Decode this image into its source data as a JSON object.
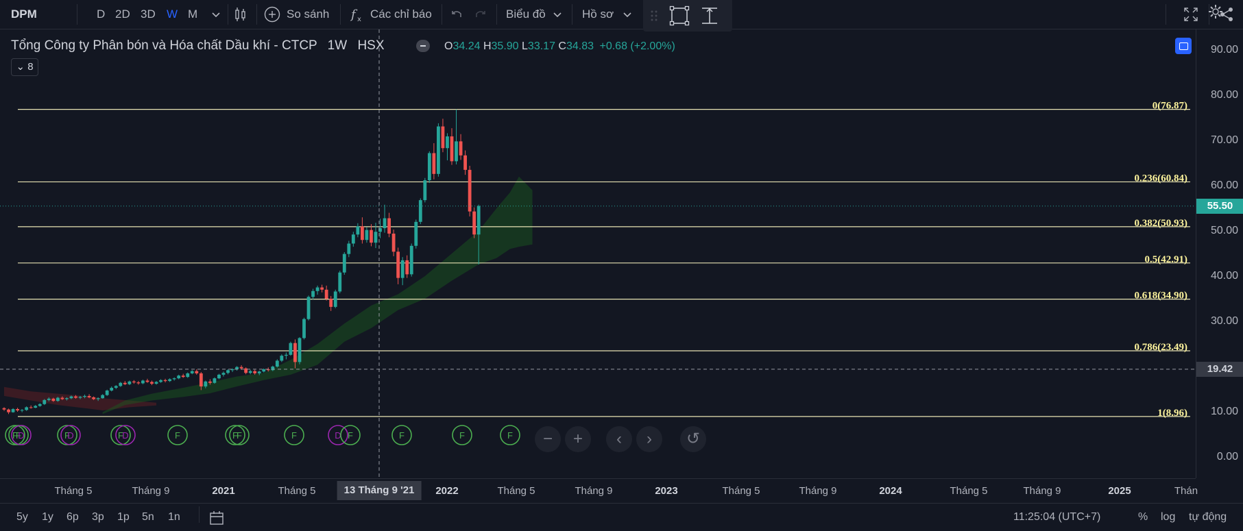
{
  "toolbar": {
    "symbol": "DPM",
    "intervals": [
      "D",
      "2D",
      "3D",
      "W",
      "M"
    ],
    "active_interval": "W",
    "compare_label": "So sánh",
    "indicators_label": "Các chỉ báo",
    "chart_label": "Biểu đồ",
    "profile_label": "Hồ sơ"
  },
  "legend": {
    "company": "Tổng Công ty Phân bón và Hóa chất Dầu khí - CTCP",
    "interval": "1W",
    "exchange": "HSX",
    "o_label": "O",
    "o": "34.24",
    "h_label": "H",
    "h": "35.90",
    "l_label": "L",
    "l": "33.17",
    "c_label": "C",
    "c": "34.83",
    "change": "+0.68 (+2.00%)",
    "collapsed_count": "8"
  },
  "price_axis": {
    "ticks": [
      "90.00",
      "80.00",
      "70.00",
      "60.00",
      "50.00",
      "40.00",
      "30.00",
      "20.00",
      "10.00",
      "0.00"
    ],
    "current_price": "55.50",
    "crosshair_price": "19.42"
  },
  "chart_data": {
    "type": "candlestick",
    "ylim": [
      0,
      90
    ],
    "fib_levels": [
      {
        "ratio": 0,
        "price": 76.87,
        "label": "0(76.87)"
      },
      {
        "ratio": 0.236,
        "price": 60.84,
        "label": "0.236(60.84)"
      },
      {
        "ratio": 0.382,
        "price": 50.93,
        "label": "0.382(50.93)"
      },
      {
        "ratio": 0.5,
        "price": 42.91,
        "label": "0.5(42.91)"
      },
      {
        "ratio": 0.618,
        "price": 34.9,
        "label": "0.618(34.90)"
      },
      {
        "ratio": 0.786,
        "price": 23.49,
        "label": "0.786(23.49)"
      },
      {
        "ratio": 1,
        "price": 8.96,
        "label": "1(8.96)"
      }
    ],
    "current_price": 55.5,
    "crosshair_price": 19.42,
    "crosshair_date": "13 Tháng 9 '21",
    "candles": [
      [
        10.8,
        11.0,
        10.2,
        10.5
      ],
      [
        10.5,
        10.7,
        9.5,
        9.9
      ],
      [
        9.9,
        10.8,
        9.8,
        10.6
      ],
      [
        10.6,
        10.9,
        10.0,
        10.3
      ],
      [
        10.3,
        10.6,
        9.9,
        10.4
      ],
      [
        10.4,
        11.2,
        10.2,
        11.0
      ],
      [
        11.0,
        11.4,
        10.7,
        10.9
      ],
      [
        10.9,
        11.5,
        10.8,
        11.3
      ],
      [
        11.3,
        11.9,
        11.1,
        11.7
      ],
      [
        11.7,
        12.8,
        11.5,
        12.6
      ],
      [
        12.6,
        13.2,
        12.3,
        12.9
      ],
      [
        12.9,
        13.1,
        12.2,
        12.4
      ],
      [
        12.4,
        13.3,
        12.2,
        13.1
      ],
      [
        13.1,
        13.4,
        12.6,
        12.8
      ],
      [
        12.8,
        13.2,
        12.5,
        13.0
      ],
      [
        13.0,
        13.6,
        12.8,
        13.4
      ],
      [
        13.4,
        13.7,
        12.9,
        13.1
      ],
      [
        13.1,
        13.5,
        12.8,
        13.3
      ],
      [
        13.3,
        13.8,
        13.0,
        13.5
      ],
      [
        13.5,
        13.9,
        13.0,
        13.2
      ],
      [
        13.2,
        13.4,
        12.6,
        12.8
      ],
      [
        12.8,
        13.2,
        12.4,
        13.0
      ],
      [
        13.0,
        13.9,
        12.9,
        13.7
      ],
      [
        13.7,
        14.9,
        13.5,
        14.7
      ],
      [
        14.7,
        15.6,
        14.5,
        15.3
      ],
      [
        15.3,
        15.9,
        15.0,
        15.7
      ],
      [
        15.7,
        16.6,
        15.5,
        16.4
      ],
      [
        16.4,
        16.8,
        15.9,
        16.1
      ],
      [
        16.1,
        16.9,
        15.9,
        16.7
      ],
      [
        16.7,
        17.0,
        16.2,
        16.5
      ],
      [
        16.5,
        16.8,
        16.0,
        16.3
      ],
      [
        16.3,
        17.1,
        16.1,
        16.9
      ],
      [
        16.9,
        17.3,
        16.4,
        16.6
      ],
      [
        16.6,
        16.9,
        15.9,
        16.2
      ],
      [
        16.2,
        16.8,
        16.0,
        16.6
      ],
      [
        16.6,
        17.2,
        16.4,
        17.0
      ],
      [
        17.0,
        17.3,
        16.5,
        16.8
      ],
      [
        16.8,
        17.4,
        16.6,
        17.2
      ],
      [
        17.2,
        17.6,
        16.9,
        17.4
      ],
      [
        17.4,
        18.2,
        17.2,
        18.0
      ],
      [
        18.0,
        18.4,
        17.5,
        17.7
      ],
      [
        17.7,
        18.7,
        17.5,
        18.5
      ],
      [
        18.5,
        19.2,
        18.3,
        19.0
      ],
      [
        19.0,
        19.4,
        18.2,
        18.5
      ],
      [
        18.5,
        18.8,
        14.8,
        15.6
      ],
      [
        15.6,
        16.9,
        15.2,
        16.7
      ],
      [
        16.7,
        17.2,
        16.0,
        16.4
      ],
      [
        16.4,
        17.6,
        16.2,
        17.4
      ],
      [
        17.4,
        18.4,
        17.2,
        18.2
      ],
      [
        18.2,
        18.9,
        17.8,
        18.6
      ],
      [
        18.6,
        19.4,
        18.3,
        19.2
      ],
      [
        19.2,
        19.6,
        18.8,
        19.4
      ],
      [
        19.4,
        20.1,
        19.1,
        19.9
      ],
      [
        19.9,
        20.3,
        19.3,
        19.6
      ],
      [
        19.6,
        19.8,
        18.3,
        18.6
      ],
      [
        18.6,
        19.3,
        18.3,
        19.0
      ],
      [
        19.0,
        19.3,
        18.2,
        18.5
      ],
      [
        18.5,
        19.1,
        18.1,
        18.9
      ],
      [
        18.9,
        19.6,
        18.7,
        19.4
      ],
      [
        19.4,
        19.8,
        18.9,
        19.2
      ],
      [
        19.2,
        20.2,
        19.0,
        20.0
      ],
      [
        20.0,
        21.6,
        19.8,
        21.3
      ],
      [
        21.3,
        22.7,
        21.0,
        22.4
      ],
      [
        22.4,
        23.1,
        21.6,
        22.6
      ],
      [
        22.6,
        25.5,
        22.4,
        25.2
      ],
      [
        25.2,
        26.0,
        19.6,
        21.0
      ],
      [
        21.0,
        26.5,
        20.5,
        26.3
      ],
      [
        26.3,
        30.8,
        26.0,
        30.5
      ],
      [
        30.5,
        35.7,
        30.2,
        35.4
      ],
      [
        35.4,
        37.2,
        34.8,
        36.7
      ],
      [
        36.7,
        37.9,
        35.9,
        37.5
      ],
      [
        37.5,
        38.1,
        36.4,
        37.0
      ],
      [
        37.0,
        37.9,
        34.6,
        35.0
      ],
      [
        35.0,
        35.6,
        32.3,
        33.2
      ],
      [
        33.2,
        37.0,
        32.9,
        36.6
      ],
      [
        36.6,
        41.2,
        36.2,
        40.8
      ],
      [
        40.8,
        45.3,
        40.3,
        44.9
      ],
      [
        44.9,
        47.8,
        44.2,
        47.2
      ],
      [
        47.2,
        49.8,
        46.5,
        49.2
      ],
      [
        49.2,
        51.7,
        48.6,
        51.0
      ],
      [
        51.0,
        53.0,
        47.2,
        48.0
      ],
      [
        48.0,
        50.8,
        47.4,
        50.2
      ],
      [
        50.2,
        51.5,
        46.6,
        47.4
      ],
      [
        47.4,
        51.8,
        46.2,
        49.8
      ],
      [
        49.8,
        52.7,
        48.4,
        50.6
      ],
      [
        50.6,
        55.8,
        49.6,
        52.8
      ],
      [
        52.8,
        54.0,
        48.6,
        49.4
      ],
      [
        49.4,
        50.3,
        44.4,
        45.4
      ],
      [
        45.4,
        46.3,
        38.2,
        39.6
      ],
      [
        39.6,
        44.2,
        38.0,
        43.5
      ],
      [
        43.5,
        44.6,
        39.6,
        40.4
      ],
      [
        40.4,
        47.2,
        39.9,
        46.7
      ],
      [
        46.7,
        52.5,
        46.1,
        52.0
      ],
      [
        52.0,
        57.2,
        51.5,
        56.8
      ],
      [
        56.8,
        61.7,
        56.3,
        61.2
      ],
      [
        61.2,
        67.6,
        60.6,
        67.2
      ],
      [
        67.2,
        69.4,
        61.4,
        62.6
      ],
      [
        62.6,
        73.8,
        62.0,
        73.1
      ],
      [
        73.1,
        74.8,
        67.4,
        68.3
      ],
      [
        68.3,
        71.6,
        65.6,
        70.9
      ],
      [
        70.9,
        72.7,
        64.6,
        65.4
      ],
      [
        65.4,
        76.87,
        64.7,
        69.8
      ],
      [
        69.8,
        71.4,
        65.7,
        66.7
      ],
      [
        66.7,
        67.8,
        62.4,
        63.5
      ],
      [
        63.5,
        64.4,
        53.2,
        54.3
      ],
      [
        54.3,
        55.2,
        48.4,
        49.2
      ],
      [
        49.2,
        55.8,
        42.6,
        55.5
      ]
    ],
    "cloud": {
      "green_top": [
        [
          22,
          9.9
        ],
        [
          27,
          12.5
        ],
        [
          33,
          14.0
        ],
        [
          40,
          15.3
        ],
        [
          46,
          16.5
        ],
        [
          52,
          17.8
        ],
        [
          58,
          18.6
        ],
        [
          64,
          21.5
        ],
        [
          70,
          25.0
        ],
        [
          76,
          29.5
        ],
        [
          82,
          33.5
        ],
        [
          88,
          36.0
        ],
        [
          94,
          40.0
        ],
        [
          100,
          45.0
        ],
        [
          106,
          50.0
        ],
        [
          110,
          55.0
        ],
        [
          113,
          58.5
        ],
        [
          115,
          62.0
        ],
        [
          118,
          59.0
        ],
        [
          118,
          47.0
        ]
      ],
      "green_bottom": [
        [
          22,
          9.5
        ],
        [
          27,
          11.5
        ],
        [
          33,
          12.5
        ],
        [
          40,
          13.3
        ],
        [
          46,
          14.1
        ],
        [
          52,
          15.6
        ],
        [
          58,
          17.0
        ],
        [
          64,
          18.2
        ],
        [
          70,
          20.4
        ],
        [
          76,
          25.5
        ],
        [
          82,
          28.5
        ],
        [
          88,
          32.5
        ],
        [
          94,
          35.0
        ],
        [
          100,
          39.0
        ],
        [
          106,
          42.6
        ],
        [
          110,
          44.0
        ],
        [
          113,
          46.0
        ],
        [
          115,
          46.5
        ],
        [
          118,
          47.0
        ]
      ],
      "red_top": [
        [
          0,
          15.5
        ],
        [
          6,
          14.5
        ],
        [
          12,
          14.0
        ],
        [
          18,
          13.5
        ],
        [
          22,
          13.0
        ],
        [
          28,
          12.5
        ],
        [
          34,
          12.0
        ]
      ],
      "red_bottom": [
        [
          0,
          13.5
        ],
        [
          6,
          12.5
        ],
        [
          12,
          11.5
        ],
        [
          18,
          10.8
        ],
        [
          22,
          10.3
        ],
        [
          28,
          11.0
        ],
        [
          34,
          11.4
        ]
      ]
    },
    "event_markers": [
      {
        "label": "F",
        "color": "#4caf50"
      },
      {
        "label": "F",
        "color": "#4caf50"
      },
      {
        "label": "D",
        "color": "#9c27b0"
      },
      {
        "label": "F",
        "color": "#4caf50"
      },
      {
        "label": "D",
        "color": "#9c27b0"
      },
      {
        "label": "F",
        "color": "#4caf50"
      },
      {
        "label": "D",
        "color": "#9c27b0"
      },
      {
        "label": "F",
        "color": "#4caf50"
      },
      {
        "label": "F",
        "color": "#4caf50"
      },
      {
        "label": "F",
        "color": "#4caf50"
      },
      {
        "label": "F",
        "color": "#4caf50"
      },
      {
        "label": "D",
        "color": "#9c27b0"
      },
      {
        "label": "F",
        "color": "#4caf50"
      },
      {
        "label": "F",
        "color": "#4caf50"
      },
      {
        "label": "F",
        "color": "#4caf50"
      },
      {
        "label": "F",
        "color": "#4caf50"
      }
    ],
    "colors": {
      "up": "#26a69a",
      "down": "#ef5350",
      "fib": "#e8e3b3",
      "cloud_green": "#1b5e20",
      "cloud_red": "#5d1f24"
    }
  },
  "time_axis": {
    "ticks": [
      {
        "label": "Tháng 5",
        "year": false
      },
      {
        "label": "Tháng 9",
        "year": false
      },
      {
        "label": "2021",
        "year": true
      },
      {
        "label": "Tháng 5",
        "year": false
      },
      {
        "label": "2022",
        "year": true
      },
      {
        "label": "Tháng 5",
        "year": false
      },
      {
        "label": "Tháng 9",
        "year": false
      },
      {
        "label": "2023",
        "year": true
      },
      {
        "label": "Tháng 5",
        "year": false
      },
      {
        "label": "Tháng 9",
        "year": false
      },
      {
        "label": "2024",
        "year": true
      },
      {
        "label": "Tháng 5",
        "year": false
      },
      {
        "label": "Tháng 9",
        "year": false
      },
      {
        "label": "2025",
        "year": true
      },
      {
        "label": "Thán",
        "year": false
      }
    ],
    "crosshair_label": "13 Tháng 9 '21"
  },
  "bottom_bar": {
    "ranges": [
      "5y",
      "1y",
      "6p",
      "3p",
      "1p",
      "5n",
      "1n"
    ],
    "time": "11:25:04 (UTC+7)",
    "percent": "%",
    "log": "log",
    "auto": "tự động"
  }
}
